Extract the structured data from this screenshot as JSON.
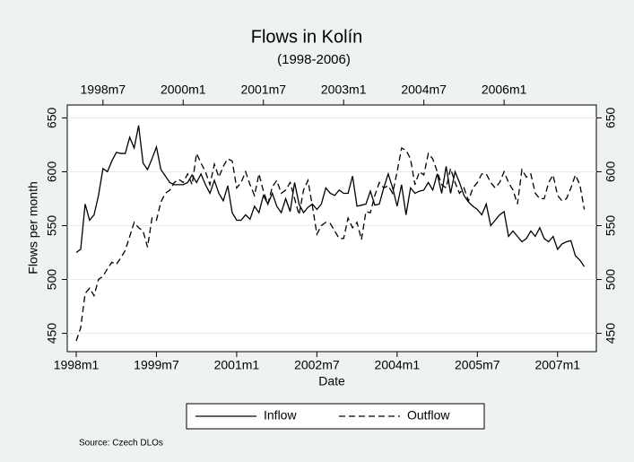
{
  "chart_data": {
    "type": "line",
    "title": "Flows in Kolín",
    "subtitle": "(1998-2006)",
    "y_label": "Flows per month",
    "x_label": "Date",
    "source": "Source: Czech DLOs",
    "legend_position": "bottom",
    "grid": true,
    "ylim": [
      433,
      662
    ],
    "yticks": [
      450,
      500,
      550,
      600,
      650
    ],
    "xticks": [
      "1998m1",
      "1999m7",
      "2001m1",
      "2002m7",
      "2004m1",
      "2005m7",
      "2007m1"
    ],
    "x2ticks": [
      "1998m7",
      "2000m1",
      "2001m7",
      "2003m1",
      "2004m7",
      "2006m1"
    ],
    "categories": [
      "1998m1",
      "1998m2",
      "1998m3",
      "1998m4",
      "1998m5",
      "1998m6",
      "1998m7",
      "1998m8",
      "1998m9",
      "1998m10",
      "1998m11",
      "1998m12",
      "1999m1",
      "1999m2",
      "1999m3",
      "1999m4",
      "1999m5",
      "1999m6",
      "1999m7",
      "1999m8",
      "1999m9",
      "1999m10",
      "1999m11",
      "1999m12",
      "2000m1",
      "2000m2",
      "2000m3",
      "2000m4",
      "2000m5",
      "2000m6",
      "2000m7",
      "2000m8",
      "2000m9",
      "2000m10",
      "2000m11",
      "2000m12",
      "2001m1",
      "2001m2",
      "2001m3",
      "2001m4",
      "2001m5",
      "2001m6",
      "2001m7",
      "2001m8",
      "2001m9",
      "2001m10",
      "2001m11",
      "2001m12",
      "2002m1",
      "2002m2",
      "2002m3",
      "2002m4",
      "2002m5",
      "2002m6",
      "2002m7",
      "2002m8",
      "2002m9",
      "2002m10",
      "2002m11",
      "2002m12",
      "2003m1",
      "2003m2",
      "2003m3",
      "2003m4",
      "2003m5",
      "2003m6",
      "2003m7",
      "2003m8",
      "2003m9",
      "2003m10",
      "2003m11",
      "2003m12",
      "2004m1",
      "2004m2",
      "2004m3",
      "2004m4",
      "2004m5",
      "2004m6",
      "2004m7",
      "2004m8",
      "2004m9",
      "2004m10",
      "2004m11",
      "2004m12",
      "2005m1",
      "2005m2",
      "2005m3",
      "2005m4",
      "2005m5",
      "2005m6",
      "2005m7",
      "2005m8",
      "2005m9",
      "2005m10",
      "2005m11",
      "2005m12",
      "2006m1",
      "2006m2",
      "2006m3",
      "2006m4",
      "2006m5",
      "2006m6",
      "2006m7",
      "2006m8",
      "2006m9",
      "2006m10",
      "2006m11",
      "2006m12",
      "2007m1",
      "2007m2",
      "2007m3",
      "2007m4",
      "2007m5",
      "2007m6",
      "2007m7"
    ],
    "series": [
      {
        "name": "Inflow",
        "color": "#000000",
        "dash": "solid",
        "values": [
          525,
          528,
          570,
          555,
          560,
          578,
          603,
          600,
          610,
          618,
          617,
          617,
          632,
          622,
          643,
          608,
          602,
          612,
          623,
          602,
          596,
          590,
          588,
          588,
          588,
          590,
          597,
          590,
          598,
          588,
          580,
          592,
          580,
          573,
          587,
          562,
          555,
          555,
          560,
          556,
          568,
          562,
          578,
          570,
          580,
          568,
          562,
          575,
          563,
          590,
          570,
          562,
          567,
          570,
          565,
          570,
          585,
          580,
          578,
          583,
          580,
          580,
          596,
          568,
          569,
          570,
          582,
          569,
          570,
          585,
          598,
          585,
          568,
          588,
          560,
          585,
          580,
          582,
          583,
          590,
          583,
          598,
          580,
          605,
          580,
          600,
          590,
          578,
          572,
          568,
          565,
          560,
          570,
          550,
          555,
          560,
          563,
          540,
          545,
          540,
          535,
          538,
          545,
          540,
          548,
          538,
          535,
          540,
          528,
          533,
          535,
          536,
          522,
          518,
          512
        ]
      },
      {
        "name": "Outflow",
        "color": "#000000",
        "dash": "dashed",
        "values": [
          443,
          455,
          487,
          492,
          485,
          500,
          503,
          510,
          516,
          514,
          520,
          527,
          540,
          553,
          548,
          545,
          530,
          557,
          555,
          572,
          580,
          583,
          590,
          593,
          590,
          598,
          588,
          617,
          608,
          600,
          588,
          607,
          595,
          605,
          612,
          610,
          585,
          590,
          600,
          588,
          578,
          598,
          582,
          570,
          586,
          592,
          580,
          583,
          590,
          575,
          560,
          583,
          592,
          568,
          542,
          550,
          553,
          552,
          545,
          538,
          538,
          557,
          548,
          553,
          537,
          563,
          562,
          578,
          590,
          585,
          587,
          580,
          600,
          622,
          620,
          612,
          588,
          600,
          597,
          617,
          612,
          600,
          588,
          585,
          603,
          590,
          580,
          585,
          573,
          585,
          590,
          598,
          598,
          590,
          585,
          590,
          600,
          590,
          583,
          570,
          602,
          595,
          598,
          580,
          575,
          575,
          590,
          597,
          578,
          573,
          575,
          585,
          597,
          588,
          565
        ]
      }
    ]
  }
}
